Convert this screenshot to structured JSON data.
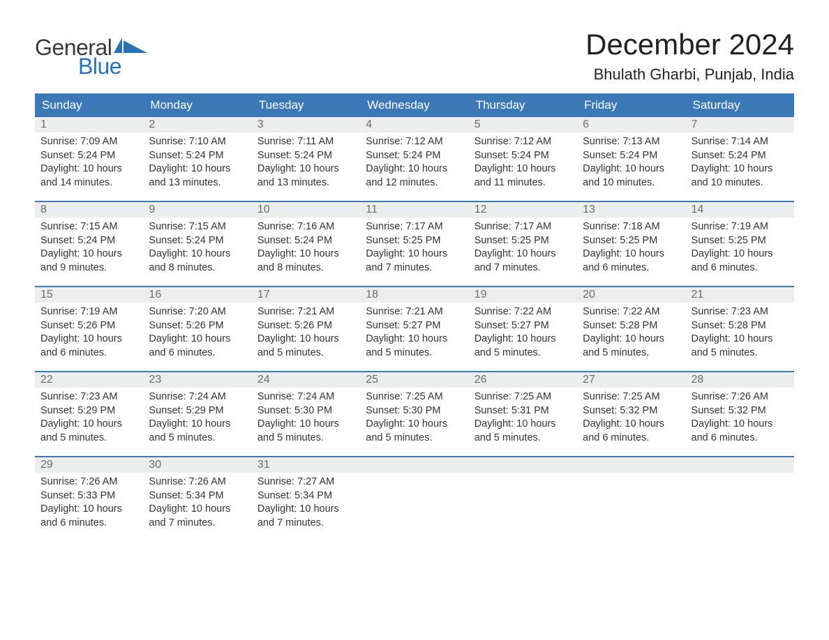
{
  "logo": {
    "line1": "General",
    "line2": "Blue"
  },
  "title": "December 2024",
  "location": "Bhulath Gharbi, Punjab, India",
  "colors": {
    "header_bg": "#3b78b5",
    "header_text": "#ffffff",
    "daynum_bg": "#eceded",
    "daynum_text": "#6b6b6b",
    "body_text": "#333333",
    "logo_blue": "#2a72b5"
  },
  "dayNames": [
    "Sunday",
    "Monday",
    "Tuesday",
    "Wednesday",
    "Thursday",
    "Friday",
    "Saturday"
  ],
  "weeks": [
    [
      {
        "n": "1",
        "sr": "7:09 AM",
        "ss": "5:24 PM",
        "dl": "10 hours and 14 minutes."
      },
      {
        "n": "2",
        "sr": "7:10 AM",
        "ss": "5:24 PM",
        "dl": "10 hours and 13 minutes."
      },
      {
        "n": "3",
        "sr": "7:11 AM",
        "ss": "5:24 PM",
        "dl": "10 hours and 13 minutes."
      },
      {
        "n": "4",
        "sr": "7:12 AM",
        "ss": "5:24 PM",
        "dl": "10 hours and 12 minutes."
      },
      {
        "n": "5",
        "sr": "7:12 AM",
        "ss": "5:24 PM",
        "dl": "10 hours and 11 minutes."
      },
      {
        "n": "6",
        "sr": "7:13 AM",
        "ss": "5:24 PM",
        "dl": "10 hours and 10 minutes."
      },
      {
        "n": "7",
        "sr": "7:14 AM",
        "ss": "5:24 PM",
        "dl": "10 hours and 10 minutes."
      }
    ],
    [
      {
        "n": "8",
        "sr": "7:15 AM",
        "ss": "5:24 PM",
        "dl": "10 hours and 9 minutes."
      },
      {
        "n": "9",
        "sr": "7:15 AM",
        "ss": "5:24 PM",
        "dl": "10 hours and 8 minutes."
      },
      {
        "n": "10",
        "sr": "7:16 AM",
        "ss": "5:24 PM",
        "dl": "10 hours and 8 minutes."
      },
      {
        "n": "11",
        "sr": "7:17 AM",
        "ss": "5:25 PM",
        "dl": "10 hours and 7 minutes."
      },
      {
        "n": "12",
        "sr": "7:17 AM",
        "ss": "5:25 PM",
        "dl": "10 hours and 7 minutes."
      },
      {
        "n": "13",
        "sr": "7:18 AM",
        "ss": "5:25 PM",
        "dl": "10 hours and 6 minutes."
      },
      {
        "n": "14",
        "sr": "7:19 AM",
        "ss": "5:25 PM",
        "dl": "10 hours and 6 minutes."
      }
    ],
    [
      {
        "n": "15",
        "sr": "7:19 AM",
        "ss": "5:26 PM",
        "dl": "10 hours and 6 minutes."
      },
      {
        "n": "16",
        "sr": "7:20 AM",
        "ss": "5:26 PM",
        "dl": "10 hours and 6 minutes."
      },
      {
        "n": "17",
        "sr": "7:21 AM",
        "ss": "5:26 PM",
        "dl": "10 hours and 5 minutes."
      },
      {
        "n": "18",
        "sr": "7:21 AM",
        "ss": "5:27 PM",
        "dl": "10 hours and 5 minutes."
      },
      {
        "n": "19",
        "sr": "7:22 AM",
        "ss": "5:27 PM",
        "dl": "10 hours and 5 minutes."
      },
      {
        "n": "20",
        "sr": "7:22 AM",
        "ss": "5:28 PM",
        "dl": "10 hours and 5 minutes."
      },
      {
        "n": "21",
        "sr": "7:23 AM",
        "ss": "5:28 PM",
        "dl": "10 hours and 5 minutes."
      }
    ],
    [
      {
        "n": "22",
        "sr": "7:23 AM",
        "ss": "5:29 PM",
        "dl": "10 hours and 5 minutes."
      },
      {
        "n": "23",
        "sr": "7:24 AM",
        "ss": "5:29 PM",
        "dl": "10 hours and 5 minutes."
      },
      {
        "n": "24",
        "sr": "7:24 AM",
        "ss": "5:30 PM",
        "dl": "10 hours and 5 minutes."
      },
      {
        "n": "25",
        "sr": "7:25 AM",
        "ss": "5:30 PM",
        "dl": "10 hours and 5 minutes."
      },
      {
        "n": "26",
        "sr": "7:25 AM",
        "ss": "5:31 PM",
        "dl": "10 hours and 5 minutes."
      },
      {
        "n": "27",
        "sr": "7:25 AM",
        "ss": "5:32 PM",
        "dl": "10 hours and 6 minutes."
      },
      {
        "n": "28",
        "sr": "7:26 AM",
        "ss": "5:32 PM",
        "dl": "10 hours and 6 minutes."
      }
    ],
    [
      {
        "n": "29",
        "sr": "7:26 AM",
        "ss": "5:33 PM",
        "dl": "10 hours and 6 minutes."
      },
      {
        "n": "30",
        "sr": "7:26 AM",
        "ss": "5:34 PM",
        "dl": "10 hours and 7 minutes."
      },
      {
        "n": "31",
        "sr": "7:27 AM",
        "ss": "5:34 PM",
        "dl": "10 hours and 7 minutes."
      },
      null,
      null,
      null,
      null
    ]
  ],
  "labels": {
    "sunrise": "Sunrise: ",
    "sunset": "Sunset: ",
    "daylight": "Daylight: "
  }
}
